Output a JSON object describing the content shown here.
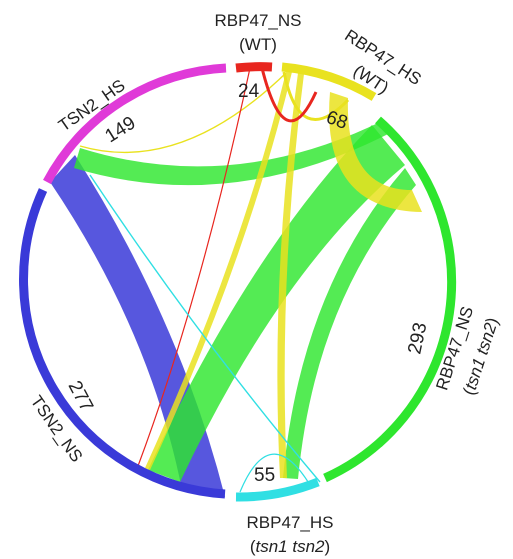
{
  "diagram": {
    "type": "chord",
    "colors": {
      "RBP47_NS_WT": "#e8261f",
      "RBP47_HS_WT": "#e9e21f",
      "RBP47_NS_tsn": "#2ee62e",
      "RBP47_HS_tsn": "#30dfe3",
      "TSN2_NS": "#3a3ad8",
      "TSN2_HS": "#e03ad8"
    },
    "groups": {
      "rbp47_ns_wt": {
        "count": "24",
        "name": "RBP47_NS",
        "cond": "(WT)"
      },
      "rbp47_hs_wt": {
        "count": "68",
        "name": "RBP47_HS",
        "cond": "(WT)"
      },
      "rbp47_ns_tsn": {
        "count": "293",
        "name": "RBP47_NS",
        "cond": "(",
        "cond_it": "tsn1 tsn2",
        "cond_end": ")"
      },
      "rbp47_hs_tsn": {
        "count": "55",
        "name": "RBP47_HS",
        "cond": "(",
        "cond_it": "tsn1 tsn2",
        "cond_end": ")"
      },
      "tsn2_ns": {
        "count": "277",
        "name": "TSN2_NS"
      },
      "tsn2_hs": {
        "count": "149",
        "name": "TSN2_HS"
      }
    }
  }
}
